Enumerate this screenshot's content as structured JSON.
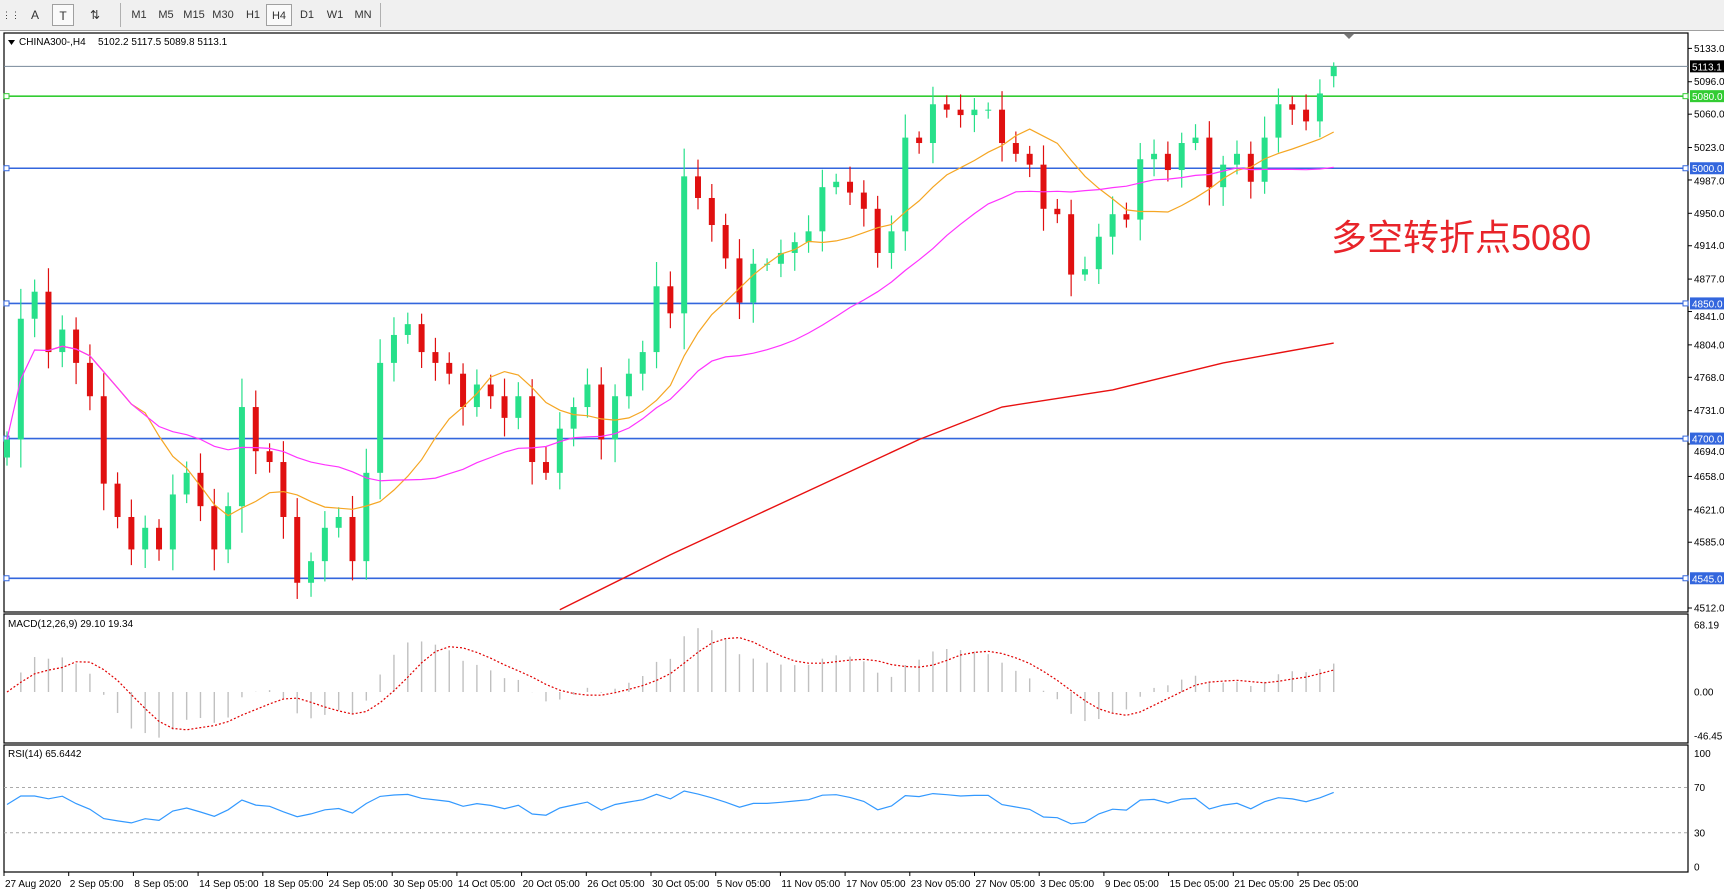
{
  "toolbar": {
    "tools": [
      {
        "name": "grid-icon",
        "label": ""
      },
      {
        "name": "text-tool",
        "label": "A"
      },
      {
        "name": "text-label-tool",
        "label": "T"
      },
      {
        "name": "arrows-tool",
        "label": "⇅"
      }
    ],
    "timeframes": [
      "M1",
      "M5",
      "M15",
      "M30",
      "H1",
      "H4",
      "D1",
      "W1",
      "MN"
    ],
    "active_timeframe": "H4"
  },
  "header": {
    "symbol_label": "CHINA300-,H4",
    "ohlc_label": "5102.2 5117.5 5089.8 5113.1"
  },
  "annotation": {
    "text": "多空转折点5080",
    "color": "#e8242a"
  },
  "colors": {
    "bull": "#27e08a",
    "bear": "#e01010",
    "ma_fast": "#f5a623",
    "ma_mid": "#ff33ff",
    "ma_slow": "#e81010",
    "support": "#3366dd",
    "pivot": "#33cc33",
    "rsi": "#3399ff",
    "macd_hist": "#c0c0c0",
    "macd_signal": "#e00000"
  },
  "chart_data": {
    "type": "candlestick",
    "last_candle": {
      "open": 5102.2,
      "high": 5117.5,
      "low": 5089.8,
      "close": 5113.1
    },
    "close": [
      4699,
      4833,
      4863,
      4796,
      4821,
      4784,
      4747,
      4650,
      4613,
      4577,
      4601,
      4577,
      4638,
      4662,
      4625,
      4577,
      4625,
      4735,
      4686,
      4674,
      4613,
      4540,
      4564,
      4601,
      4613,
      4564,
      4662,
      4784,
      4815,
      4827,
      4796,
      4784,
      4772,
      4735,
      4760,
      4747,
      4723,
      4747,
      4674,
      4662,
      4711,
      4735,
      4760,
      4699,
      4747,
      4772,
      4796,
      4869,
      4839,
      4991,
      4967,
      4937,
      4900,
      4851,
      4894,
      4894,
      4906,
      4918,
      4930,
      4979,
      4985,
      4973,
      4955,
      4906,
      4930,
      5034,
      5028,
      5071,
      5065,
      5059,
      5065,
      5065,
      5028,
      5016,
      5004,
      4955,
      4949,
      4882,
      4888,
      4924,
      4949,
      4943,
      5010,
      5016,
      4998,
      5028,
      5034,
      4979,
      5004,
      5016,
      4985,
      5034,
      5071,
      5065,
      5052,
      5083,
      5113.1
    ],
    "ma_slow_points": [
      [
        40,
        4510
      ],
      [
        48,
        4571
      ],
      [
        66,
        4699
      ],
      [
        72,
        4735
      ],
      [
        80,
        4754
      ],
      [
        88,
        4784
      ],
      [
        96,
        4806
      ]
    ],
    "price_axis": {
      "ticks": [
        "5133.0",
        "5096.0",
        "5060.0",
        "5023.0",
        "4987.0",
        "4950.0",
        "4914.0",
        "4877.0",
        "4841.0",
        "4804.0",
        "4768.0",
        "4731.0",
        "4694.0",
        "4658.0",
        "4621.0",
        "4585.0",
        "4512.0"
      ],
      "range": [
        4512,
        5133
      ]
    },
    "current_price_label": "5113.1",
    "levels": [
      {
        "value": 5080,
        "label": "5080.0",
        "kind": "pivot"
      },
      {
        "value": 5000,
        "label": "5000.0",
        "kind": "support"
      },
      {
        "value": 4850,
        "label": "4850.0",
        "kind": "support"
      },
      {
        "value": 4700,
        "label": "4700.0",
        "kind": "support"
      },
      {
        "value": 4545,
        "label": "4545.0",
        "kind": "support"
      }
    ],
    "time_labels": [
      "27 Aug 2020",
      "2 Sep 05:00",
      "8 Sep 05:00",
      "14 Sep 05:00",
      "18 Sep 05:00",
      "24 Sep 05:00",
      "30 Sep 05:00",
      "14 Oct 05:00",
      "20 Oct 05:00",
      "26 Oct 05:00",
      "30 Oct 05:00",
      "5 Nov 05:00",
      "11 Nov 05:00",
      "17 Nov 05:00",
      "23 Nov 05:00",
      "27 Nov 05:00",
      "3 Dec 05:00",
      "9 Dec 05:00",
      "15 Dec 05:00",
      "21 Dec 05:00",
      "25 Dec 05:00"
    ],
    "macd": {
      "label": "MACD(12,26,9) 29.10 19.34",
      "axis": [
        "68.19",
        "0.00",
        "-46.45"
      ],
      "range": [
        -46.45,
        68.19
      ]
    },
    "rsi": {
      "label": "RSI(14) 65.6442",
      "axis": [
        "100",
        "70",
        "30",
        "0"
      ],
      "levels": [
        70,
        30
      ],
      "range": [
        0,
        100
      ]
    }
  }
}
